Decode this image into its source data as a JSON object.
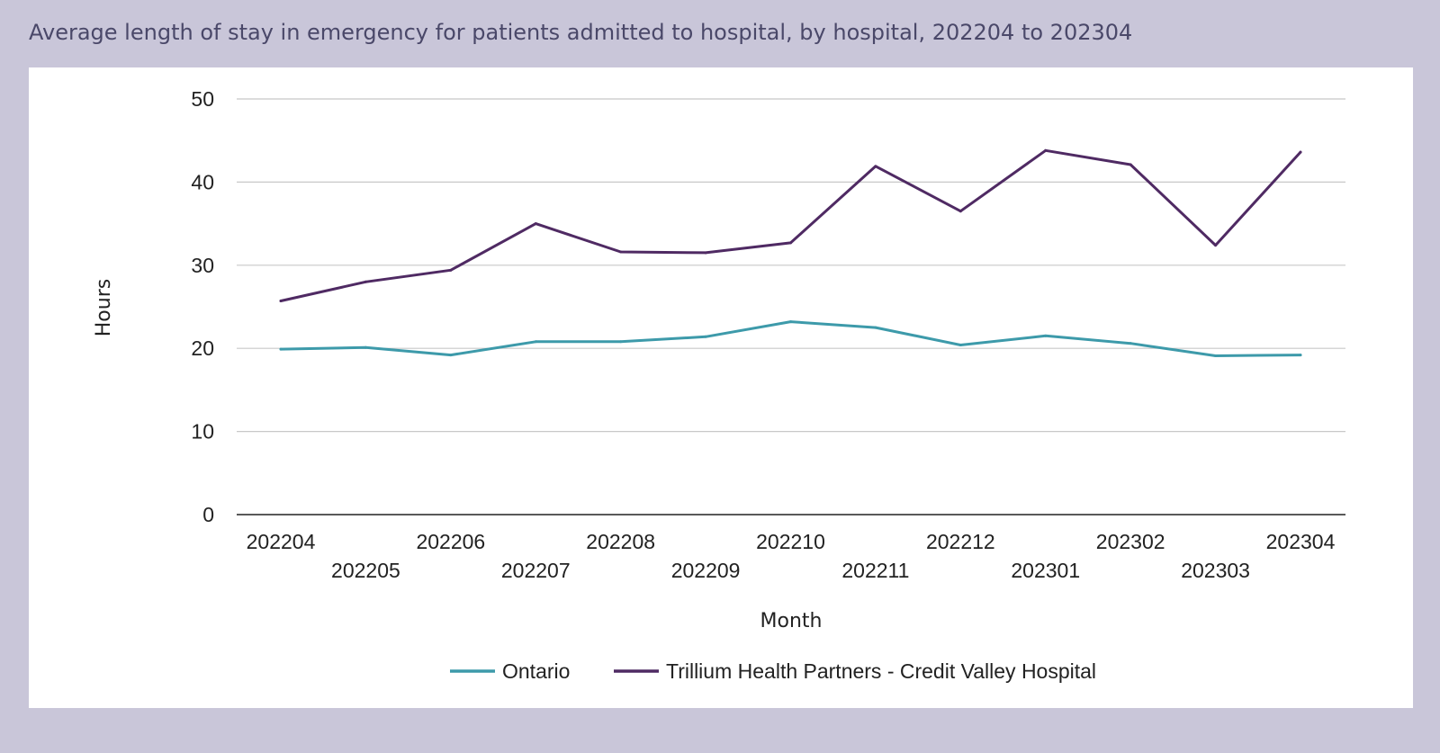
{
  "title": "Average length of stay in emergency for patients admitted to hospital, by hospital, 202204 to 202304",
  "colors": {
    "background": "#c9c6d9",
    "panel": "#ffffff",
    "title": "#4a4869",
    "gridline": "#c8c8c8",
    "axis": "#222222",
    "Ontario": "#3d9aaa",
    "Trillium Health Partners - Credit Valley Hospital": "#4f2a63"
  },
  "chart_data": {
    "type": "line",
    "title": "Average length of stay in emergency for patients admitted to hospital, by hospital, 202204 to 202304",
    "xlabel": "Month",
    "ylabel": "Hours",
    "ylim": [
      0,
      50
    ],
    "yticks": [
      0,
      10,
      20,
      30,
      40,
      50
    ],
    "grid": true,
    "legend_position": "bottom-center",
    "categories": [
      "202204",
      "202205",
      "202206",
      "202207",
      "202208",
      "202209",
      "202210",
      "202211",
      "202212",
      "202301",
      "202302",
      "202303",
      "202304"
    ],
    "series": [
      {
        "name": "Ontario",
        "color": "#3d9aaa",
        "values": [
          19.9,
          20.1,
          19.2,
          20.8,
          20.8,
          21.4,
          23.2,
          22.5,
          20.4,
          21.5,
          20.6,
          19.1,
          19.2
        ]
      },
      {
        "name": "Trillium Health Partners - Credit Valley Hospital",
        "color": "#4f2a63",
        "values": [
          25.7,
          28.0,
          29.4,
          35.0,
          31.6,
          31.5,
          32.7,
          41.9,
          36.5,
          43.8,
          42.1,
          32.4,
          43.6
        ]
      }
    ]
  }
}
